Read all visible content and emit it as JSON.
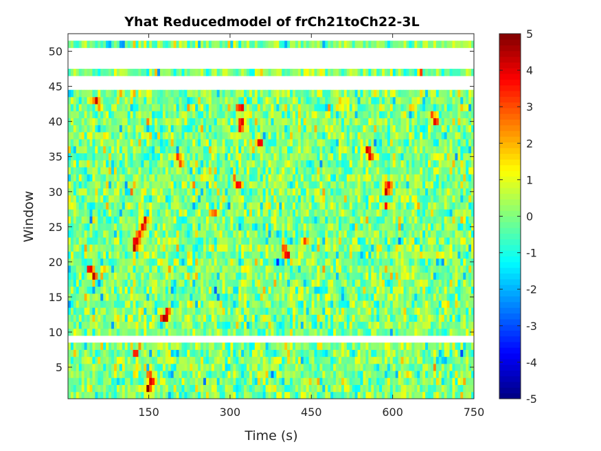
{
  "chart_data": {
    "type": "heatmap",
    "title": "Yhat Reducedmodel of frCh21toCh22-3L",
    "xlabel": "Time (s)",
    "ylabel": "Window",
    "xlim": [
      1,
      750
    ],
    "ylim": [
      0.5,
      52.5
    ],
    "xticks": [
      150,
      300,
      450,
      600,
      750
    ],
    "yticks": [
      5,
      10,
      15,
      20,
      25,
      30,
      35,
      40,
      45,
      50
    ],
    "windows_with_data": [
      1,
      2,
      3,
      4,
      5,
      6,
      7,
      8,
      10,
      11,
      12,
      13,
      14,
      15,
      16,
      17,
      18,
      19,
      20,
      21,
      22,
      23,
      24,
      25,
      26,
      27,
      28,
      29,
      30,
      31,
      32,
      33,
      34,
      35,
      36,
      37,
      38,
      39,
      40,
      41,
      42,
      43,
      44,
      47,
      51
    ],
    "missing_windows": [
      9,
      45,
      46,
      48,
      49,
      50,
      52
    ],
    "time_columns": 150,
    "colormap": "jet",
    "color_limits": [
      -5,
      5
    ],
    "colorbar_ticks": [
      5,
      4,
      3,
      2,
      1,
      0,
      -1,
      -2,
      -3,
      -4,
      -5
    ],
    "colorbar_tick_labels": [
      "5",
      "4",
      "3",
      "2",
      "1",
      "0",
      "-1",
      "-2",
      "-3",
      "-4",
      "-5"
    ],
    "baseline_value": 0,
    "hotspots": [
      {
        "window": 2,
        "time": 150,
        "value": 4.8
      },
      {
        "window": 3,
        "time": 155,
        "value": 4.5
      },
      {
        "window": 4,
        "time": 152,
        "value": 4.2
      },
      {
        "window": 7,
        "time": 125,
        "value": 3.6
      },
      {
        "window": 12,
        "time": 180,
        "value": 4.6
      },
      {
        "window": 13,
        "time": 185,
        "value": 3.8
      },
      {
        "window": 18,
        "time": 50,
        "value": 4.3
      },
      {
        "window": 19,
        "time": 42,
        "value": 4.6
      },
      {
        "window": 21,
        "time": 405,
        "value": 4.7
      },
      {
        "window": 22,
        "time": 400,
        "value": 3.7
      },
      {
        "window": 22,
        "time": 125,
        "value": 4.3
      },
      {
        "window": 23,
        "time": 128,
        "value": 4.1
      },
      {
        "window": 24,
        "time": 133,
        "value": 3.7
      },
      {
        "window": 25,
        "time": 138,
        "value": 3.5
      },
      {
        "window": 26,
        "time": 145,
        "value": 4.2
      },
      {
        "window": 23,
        "time": 440,
        "value": 3.2
      },
      {
        "window": 27,
        "time": 270,
        "value": 3.3
      },
      {
        "window": 28,
        "time": 588,
        "value": 3.8
      },
      {
        "window": 30,
        "time": 590,
        "value": 4.5
      },
      {
        "window": 31,
        "time": 592,
        "value": 4.2
      },
      {
        "window": 31,
        "time": 315,
        "value": 3.6
      },
      {
        "window": 34,
        "time": 210,
        "value": 4.1
      },
      {
        "window": 35,
        "time": 205,
        "value": 3.2
      },
      {
        "window": 35,
        "time": 560,
        "value": 4.0
      },
      {
        "window": 36,
        "time": 555,
        "value": 3.6
      },
      {
        "window": 37,
        "time": 355,
        "value": 4.3
      },
      {
        "window": 39,
        "time": 322,
        "value": 4.1
      },
      {
        "window": 40,
        "time": 320,
        "value": 4.5
      },
      {
        "window": 40,
        "time": 678,
        "value": 4.4
      },
      {
        "window": 41,
        "time": 675,
        "value": 3.7
      },
      {
        "window": 42,
        "time": 318,
        "value": 3.9
      },
      {
        "window": 43,
        "time": 55,
        "value": 3.2
      },
      {
        "window": 42,
        "time": 60,
        "value": 3.0
      }
    ],
    "coldspots": [
      {
        "window": 14,
        "time": 5,
        "value": -2.2
      },
      {
        "window": 20,
        "time": 390,
        "value": -2.0
      },
      {
        "window": 7,
        "time": 200,
        "value": -2.1
      },
      {
        "window": 2,
        "time": 530,
        "value": -2.0
      },
      {
        "window": 51,
        "time": 100,
        "value": -1.8
      }
    ]
  }
}
